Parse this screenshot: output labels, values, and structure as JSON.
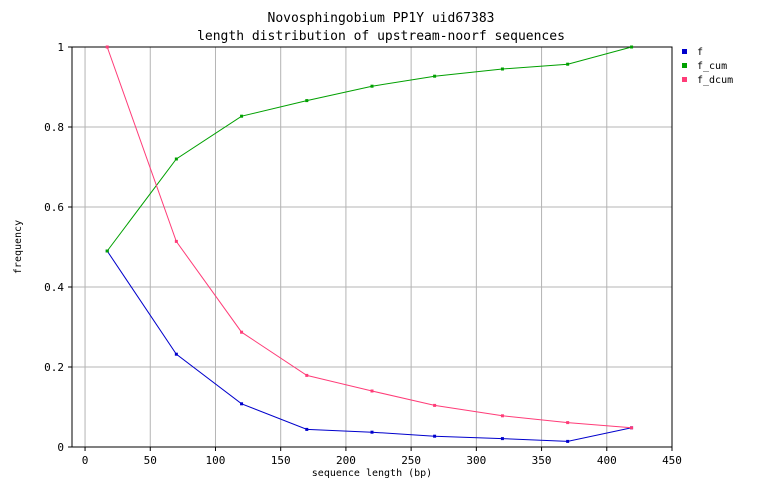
{
  "chart_data": {
    "type": "line",
    "title": "Novosphingobium PP1Y uid67383",
    "subtitle": "length distribution of upstream-noorf sequences",
    "xlabel": "sequence length (bp)",
    "ylabel": "frequency",
    "xlim": [
      -10,
      450
    ],
    "ylim": [
      0,
      1
    ],
    "x_ticks": [
      "0",
      "50",
      "100",
      "150",
      "200",
      "250",
      "300",
      "350",
      "400",
      "450"
    ],
    "x_tick_values": [
      0,
      50,
      100,
      150,
      200,
      250,
      300,
      350,
      400,
      450
    ],
    "y_ticks": [
      "0",
      "0.2",
      "0.4",
      "0.6",
      "0.8",
      "1"
    ],
    "y_tick_values": [
      0,
      0.2,
      0.4,
      0.6,
      0.8,
      1
    ],
    "grid": true,
    "legend_position": "right-top",
    "x": [
      17,
      70,
      120,
      170,
      220,
      268,
      320,
      370,
      419
    ],
    "series": [
      {
        "name": "f",
        "color": "#0000cc",
        "values": [
          0.49,
          0.232,
          0.108,
          0.044,
          0.037,
          0.027,
          0.021,
          0.014,
          0.048
        ]
      },
      {
        "name": "f_cum",
        "color": "#00a000",
        "values": [
          0.49,
          0.72,
          0.827,
          0.866,
          0.902,
          0.927,
          0.945,
          0.957,
          1.0
        ]
      },
      {
        "name": "f_dcum",
        "color": "#ff3c78",
        "values": [
          1.0,
          0.514,
          0.287,
          0.179,
          0.14,
          0.104,
          0.078,
          0.061,
          0.048
        ]
      }
    ]
  }
}
